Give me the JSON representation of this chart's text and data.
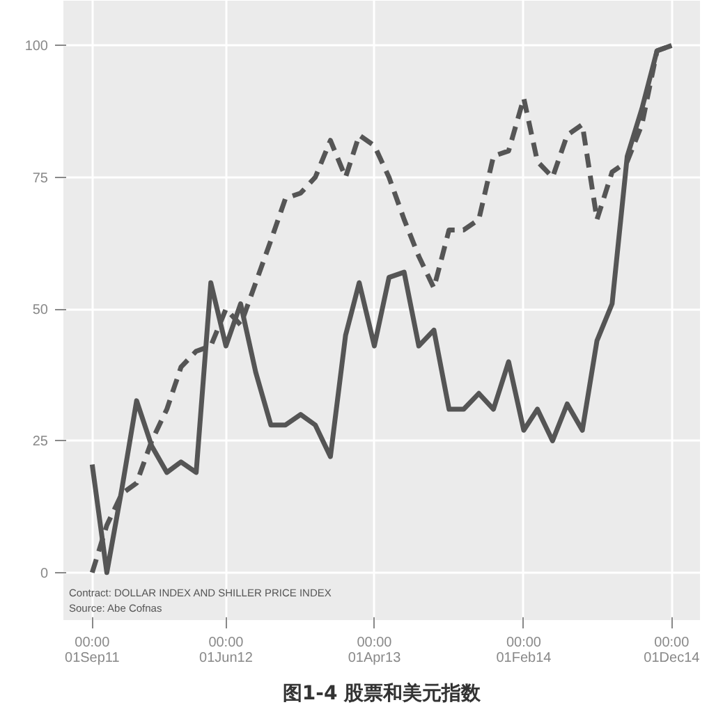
{
  "chart_data": {
    "type": "line",
    "title": "图1-4 股票和美元指数",
    "x": [
      "2011-09",
      "2011-10",
      "2011-11",
      "2011-12",
      "2012-01",
      "2012-02",
      "2012-03",
      "2012-04",
      "2012-05",
      "2012-06",
      "2012-07",
      "2012-08",
      "2012-09",
      "2012-10",
      "2012-11",
      "2012-12",
      "2013-01",
      "2013-02",
      "2013-03",
      "2013-04",
      "2013-05",
      "2013-06",
      "2013-07",
      "2013-08",
      "2013-09",
      "2013-10",
      "2013-11",
      "2013-12",
      "2014-01",
      "2014-02",
      "2014-03",
      "2014-04",
      "2014-05",
      "2014-06",
      "2014-07",
      "2014-08",
      "2014-09",
      "2014-10",
      "2014-11",
      "2014-12"
    ],
    "series": [
      {
        "color": "#555555",
        "line_style": "solid",
        "values": [
          20.5,
          0,
          16,
          32.6,
          24,
          19,
          21,
          19,
          55,
          43,
          51,
          38,
          28,
          28,
          30,
          28,
          22,
          45,
          55,
          43,
          56,
          57,
          43,
          46,
          31,
          31,
          34,
          31,
          40,
          27,
          31,
          25,
          32,
          27,
          44,
          51,
          79,
          88,
          99,
          100
        ]
      },
      {
        "color": "#555555",
        "line_style": "dashed",
        "values": [
          0,
          9,
          15,
          17,
          25,
          31,
          39,
          42,
          43,
          50,
          47,
          55,
          63,
          71,
          72,
          75,
          82,
          75,
          83,
          81,
          75,
          67,
          60,
          54,
          65,
          65,
          67,
          79,
          80,
          90,
          78,
          75,
          83,
          85,
          67,
          76,
          78,
          85,
          99,
          100
        ]
      }
    ],
    "xlim": [
      "2011-07-04",
      "2015-01-28"
    ],
    "xticks": [
      {
        "value": "2011-09-01",
        "label": "00:00\n01Sep11"
      },
      {
        "value": "2012-06-01",
        "label": "00:00\n01Jun12"
      },
      {
        "value": "2013-04-01",
        "label": "00:00\n01Apr13"
      },
      {
        "value": "2014-02-01",
        "label": "00:00\n01Feb14"
      },
      {
        "value": "2014-12-01",
        "label": "00:00\n01Dec14"
      }
    ],
    "ylim": [
      -9,
      108.5
    ],
    "yticks": [
      0,
      25,
      50,
      75,
      100
    ],
    "grid": true,
    "annotations": [
      "Contract: DOLLAR INDEX AND SHILLER PRICE INDEX",
      "Source: Abe Cofnas"
    ]
  }
}
